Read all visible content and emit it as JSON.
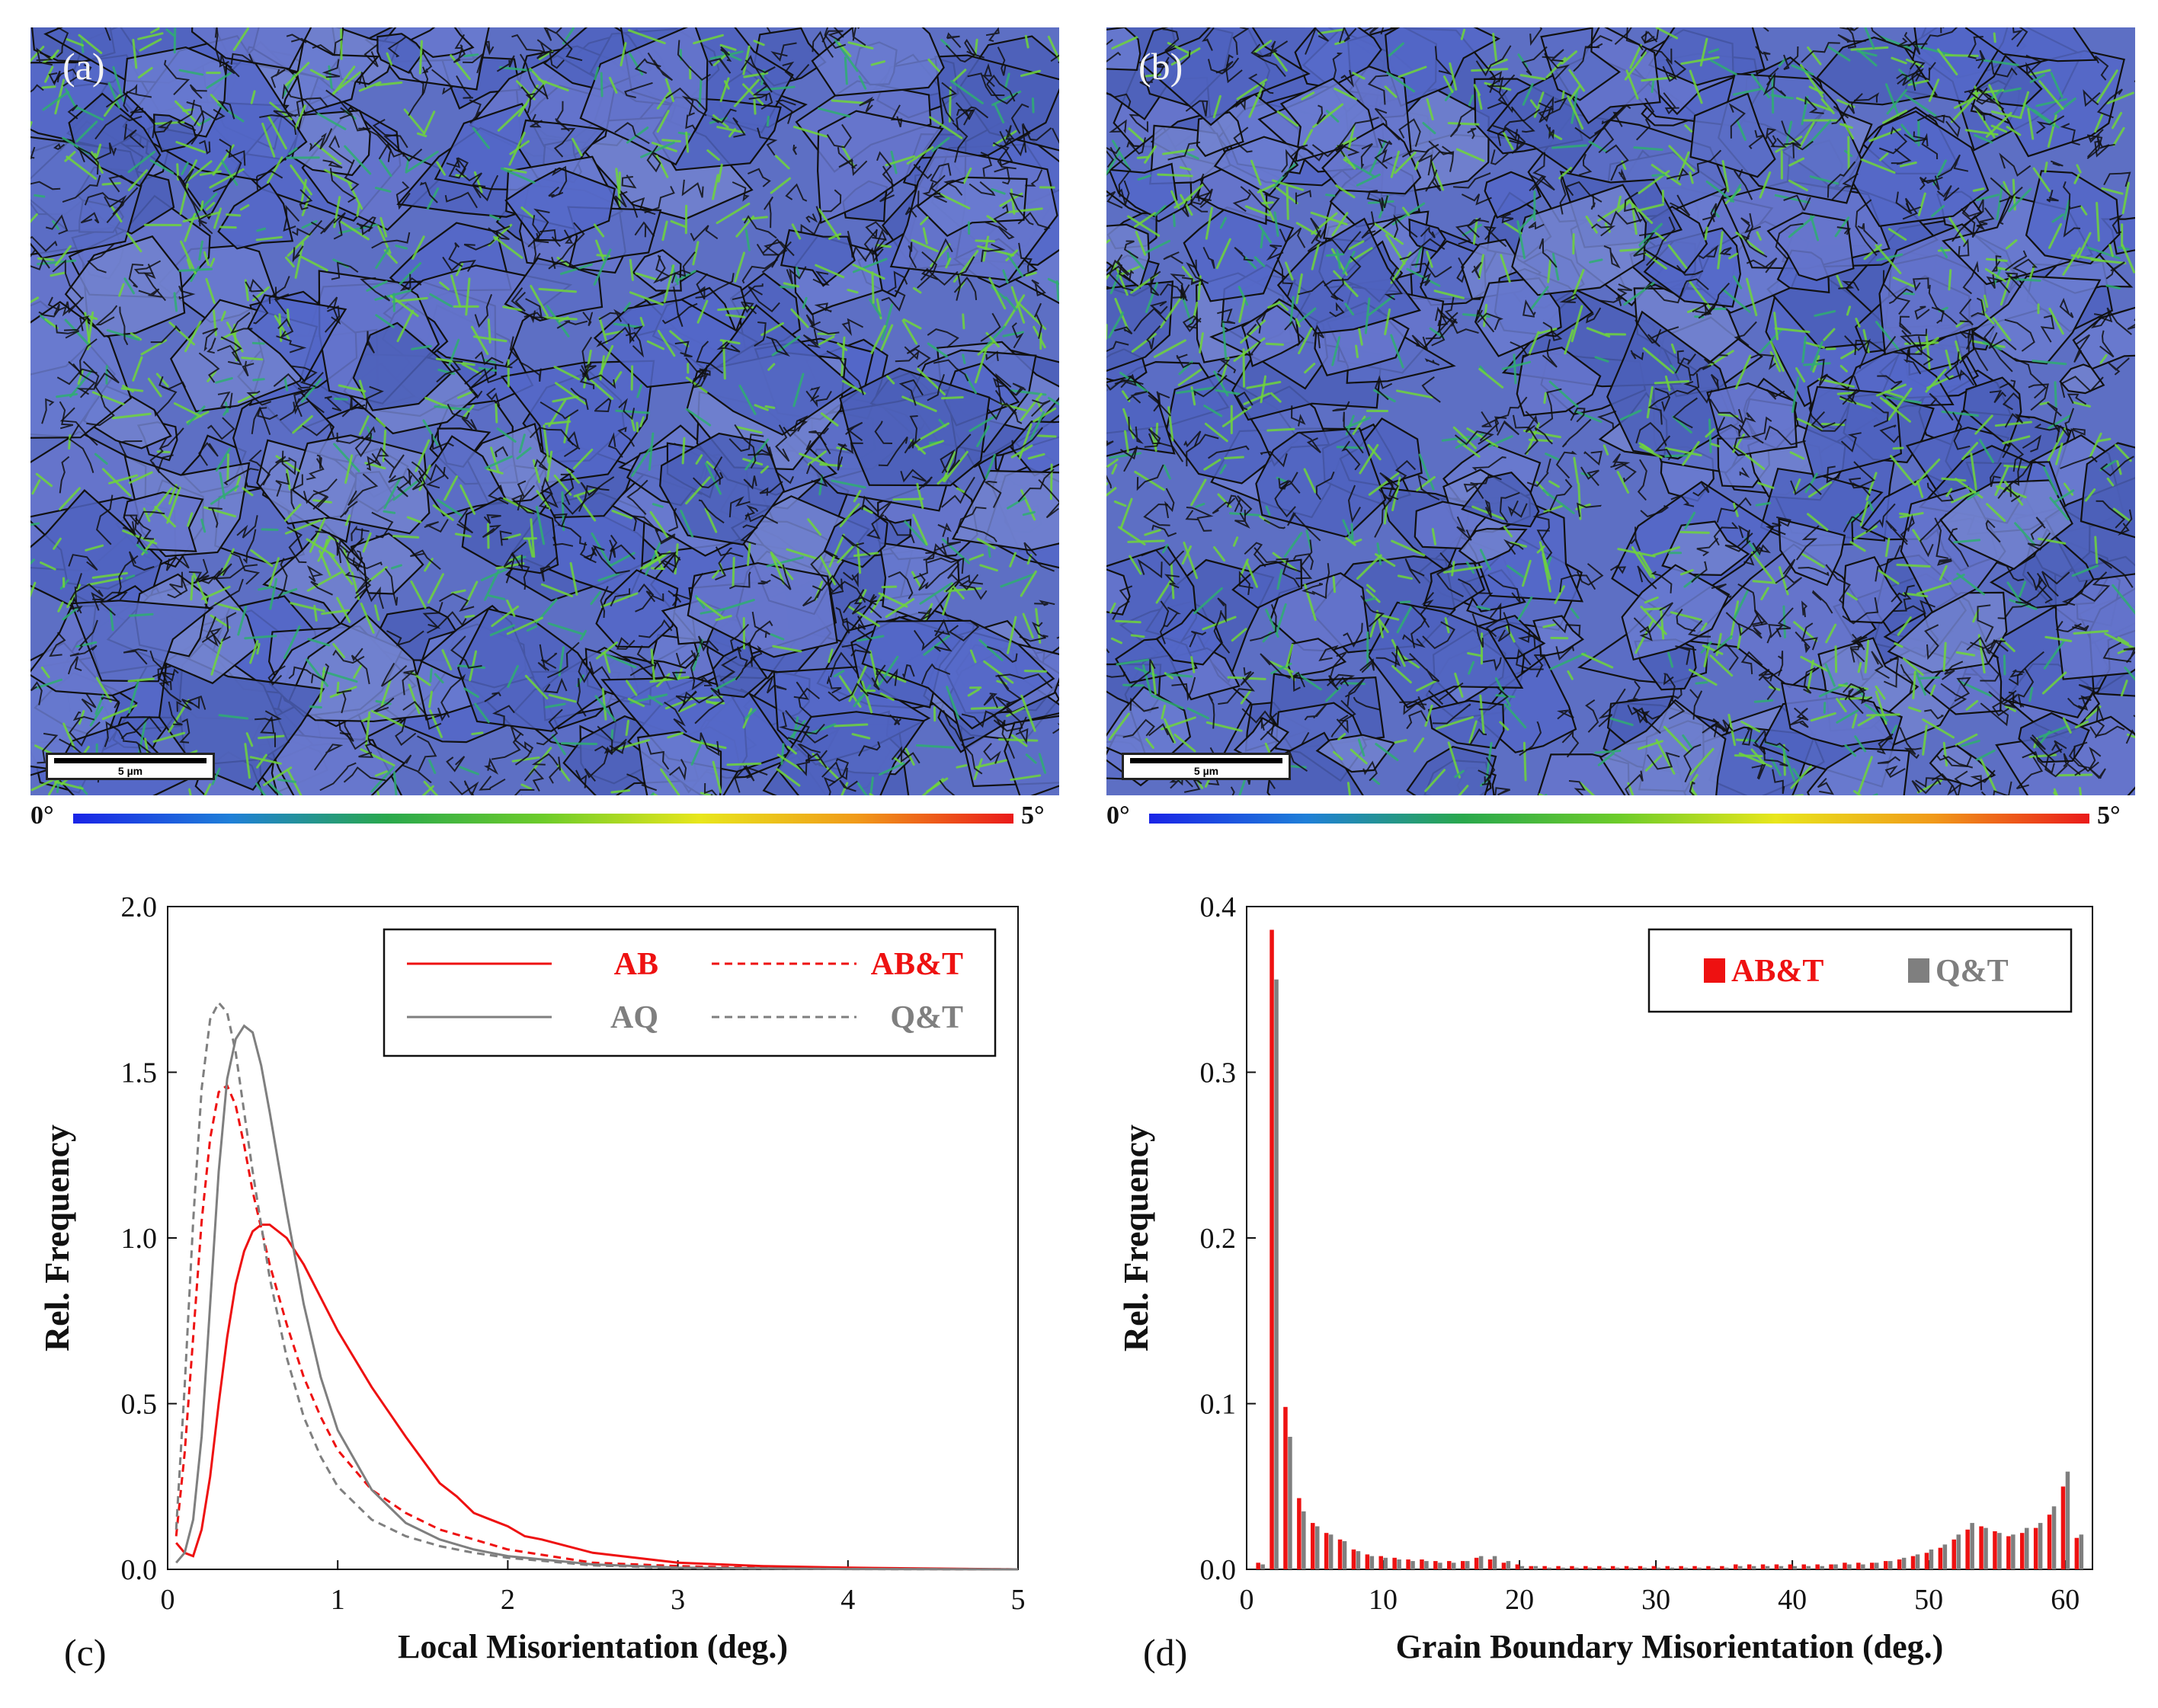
{
  "panels": {
    "a": {
      "label": "(a)",
      "scale_text": "5 µm",
      "cbar_min": "0°",
      "cbar_max": "5°"
    },
    "b": {
      "label": "(b)",
      "scale_text": "5 µm",
      "cbar_min": "0°",
      "cbar_max": "5°"
    },
    "c": {
      "label": "(c)"
    },
    "d": {
      "label": "(d)"
    }
  },
  "colors": {
    "red": "#ee1111",
    "gray": "#7f7f7f",
    "map_base": "#5d6fc4",
    "map_boundary": "#111111",
    "map_green": "#6fd63a"
  },
  "chart_data": [
    {
      "type": "line",
      "title": "",
      "xlabel": "Local Misorientation (deg.)",
      "ylabel": "Rel. Frequency",
      "xlim": [
        0,
        5
      ],
      "ylim": [
        0,
        2.0
      ],
      "xticks": [
        "0",
        "1",
        "2",
        "3",
        "4",
        "5"
      ],
      "yticks": [
        "0.0",
        "0.5",
        "1.0",
        "1.5",
        "2.0"
      ],
      "legend_position": "top-right",
      "series": [
        {
          "name": "AB",
          "color": "#ee1111",
          "dash": "solid",
          "x": [
            0.05,
            0.1,
            0.15,
            0.2,
            0.25,
            0.3,
            0.35,
            0.4,
            0.45,
            0.5,
            0.55,
            0.6,
            0.7,
            0.8,
            0.9,
            1.0,
            1.2,
            1.4,
            1.6,
            1.7,
            1.8,
            1.9,
            2.0,
            2.1,
            2.2,
            2.5,
            3.0,
            3.5,
            4.0,
            5.0
          ],
          "y": [
            0.08,
            0.05,
            0.04,
            0.12,
            0.28,
            0.5,
            0.7,
            0.86,
            0.96,
            1.02,
            1.04,
            1.04,
            1.0,
            0.92,
            0.82,
            0.72,
            0.55,
            0.4,
            0.26,
            0.22,
            0.17,
            0.15,
            0.13,
            0.1,
            0.09,
            0.05,
            0.02,
            0.01,
            0.005,
            0.0
          ]
        },
        {
          "name": "AB&T",
          "color": "#ee1111",
          "dash": "dashed",
          "x": [
            0.05,
            0.1,
            0.15,
            0.2,
            0.25,
            0.3,
            0.35,
            0.4,
            0.45,
            0.5,
            0.6,
            0.7,
            0.8,
            0.9,
            1.0,
            1.2,
            1.4,
            1.6,
            1.8,
            2.0,
            2.5,
            3.0,
            3.5,
            4.0,
            5.0
          ],
          "y": [
            0.1,
            0.35,
            0.7,
            1.05,
            1.3,
            1.44,
            1.46,
            1.4,
            1.28,
            1.14,
            0.92,
            0.74,
            0.58,
            0.46,
            0.36,
            0.24,
            0.17,
            0.12,
            0.09,
            0.06,
            0.02,
            0.01,
            0.004,
            0.002,
            0.0
          ]
        },
        {
          "name": "AQ",
          "color": "#7f7f7f",
          "dash": "solid",
          "x": [
            0.05,
            0.1,
            0.15,
            0.2,
            0.25,
            0.3,
            0.35,
            0.4,
            0.45,
            0.5,
            0.55,
            0.6,
            0.7,
            0.8,
            0.9,
            1.0,
            1.2,
            1.4,
            1.6,
            1.8,
            2.0,
            2.5,
            3.0,
            4.0,
            5.0
          ],
          "y": [
            0.02,
            0.05,
            0.15,
            0.4,
            0.8,
            1.2,
            1.48,
            1.6,
            1.64,
            1.62,
            1.52,
            1.38,
            1.08,
            0.8,
            0.58,
            0.42,
            0.24,
            0.14,
            0.09,
            0.06,
            0.04,
            0.015,
            0.005,
            0.001,
            0.0
          ]
        },
        {
          "name": "Q&T",
          "color": "#7f7f7f",
          "dash": "dashed",
          "x": [
            0.05,
            0.1,
            0.15,
            0.2,
            0.25,
            0.3,
            0.35,
            0.4,
            0.45,
            0.5,
            0.6,
            0.7,
            0.8,
            0.9,
            1.0,
            1.2,
            1.4,
            1.6,
            1.8,
            2.0,
            2.5,
            3.0,
            4.0,
            5.0
          ],
          "y": [
            0.12,
            0.55,
            1.05,
            1.45,
            1.66,
            1.71,
            1.68,
            1.56,
            1.38,
            1.2,
            0.88,
            0.64,
            0.46,
            0.34,
            0.25,
            0.15,
            0.1,
            0.07,
            0.05,
            0.035,
            0.012,
            0.004,
            0.001,
            0.0
          ]
        }
      ]
    },
    {
      "type": "bar",
      "title": "",
      "xlabel": "Grain Boundary Misorientation (deg.)",
      "ylabel": "Rel. Frequency",
      "xlim": [
        0,
        62
      ],
      "ylim": [
        0,
        0.4
      ],
      "xticks": [
        "0",
        "10",
        "20",
        "30",
        "40",
        "50",
        "60"
      ],
      "yticks": [
        "0.0",
        "0.1",
        "0.2",
        "0.3",
        "0.4"
      ],
      "legend_position": "top-right",
      "x": [
        0,
        1,
        2,
        3,
        4,
        5,
        6,
        7,
        8,
        9,
        10,
        11,
        12,
        13,
        14,
        15,
        16,
        17,
        18,
        19,
        20,
        21,
        22,
        23,
        24,
        25,
        26,
        27,
        28,
        29,
        30,
        31,
        32,
        33,
        34,
        35,
        36,
        37,
        38,
        39,
        40,
        41,
        42,
        43,
        44,
        45,
        46,
        47,
        48,
        49,
        50,
        51,
        52,
        53,
        54,
        55,
        56,
        57,
        58,
        59,
        60
      ],
      "series": [
        {
          "name": "AB&T",
          "color": "#ee1111",
          "values": [
            0.004,
            0.386,
            0.098,
            0.043,
            0.028,
            0.022,
            0.018,
            0.012,
            0.009,
            0.008,
            0.007,
            0.006,
            0.006,
            0.005,
            0.005,
            0.005,
            0.007,
            0.006,
            0.004,
            0.003,
            0.002,
            0.002,
            0.002,
            0.002,
            0.002,
            0.002,
            0.002,
            0.002,
            0.002,
            0.002,
            0.002,
            0.002,
            0.002,
            0.002,
            0.002,
            0.003,
            0.003,
            0.003,
            0.003,
            0.003,
            0.003,
            0.003,
            0.003,
            0.004,
            0.004,
            0.004,
            0.005,
            0.006,
            0.008,
            0.01,
            0.013,
            0.018,
            0.024,
            0.026,
            0.023,
            0.02,
            0.022,
            0.025,
            0.033,
            0.05,
            0.019
          ]
        },
        {
          "name": "Q&T",
          "color": "#7f7f7f",
          "values": [
            0.003,
            0.356,
            0.08,
            0.035,
            0.026,
            0.021,
            0.017,
            0.011,
            0.008,
            0.007,
            0.006,
            0.005,
            0.005,
            0.004,
            0.004,
            0.005,
            0.008,
            0.008,
            0.005,
            0.002,
            0.002,
            0.001,
            0.001,
            0.001,
            0.001,
            0.001,
            0.001,
            0.001,
            0.001,
            0.001,
            0.001,
            0.001,
            0.001,
            0.001,
            0.001,
            0.002,
            0.002,
            0.002,
            0.002,
            0.002,
            0.002,
            0.002,
            0.003,
            0.003,
            0.003,
            0.004,
            0.005,
            0.007,
            0.009,
            0.012,
            0.015,
            0.021,
            0.028,
            0.025,
            0.022,
            0.021,
            0.025,
            0.028,
            0.038,
            0.059,
            0.021
          ]
        }
      ]
    }
  ]
}
